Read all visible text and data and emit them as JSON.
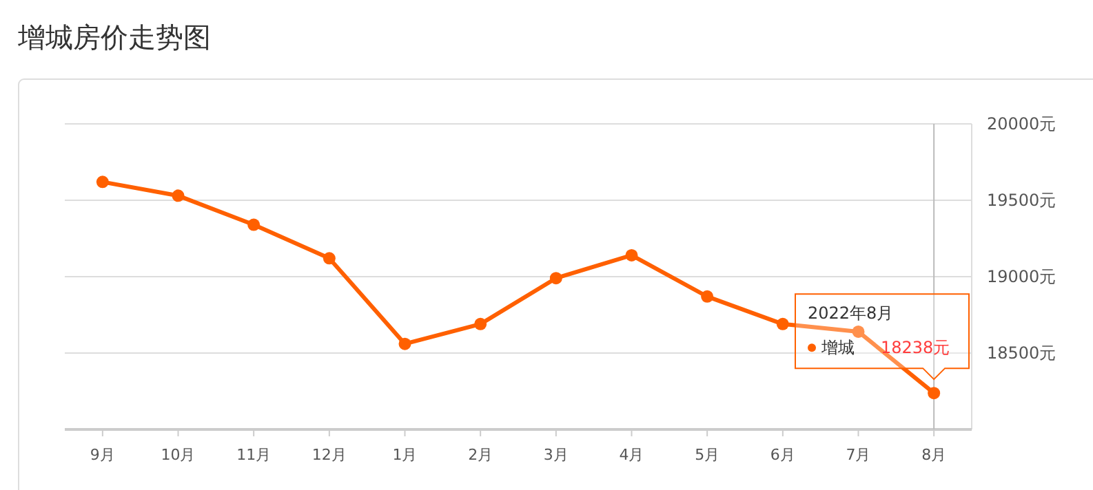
{
  "chart_data": {
    "type": "line",
    "title": "增城房价走势图",
    "categories": [
      "9月",
      "10月",
      "11月",
      "12月",
      "1月",
      "2月",
      "3月",
      "4月",
      "5月",
      "6月",
      "7月",
      "8月"
    ],
    "series": [
      {
        "name": "增城",
        "color": "#ff6000",
        "values": [
          19620,
          19530,
          19340,
          19120,
          18560,
          18690,
          18990,
          19140,
          18870,
          18690,
          18640,
          18238
        ],
        "value_labels": [
          null,
          null,
          null,
          null,
          null,
          null,
          null,
          null,
          null,
          null,
          null,
          "18238元"
        ]
      }
    ],
    "ylim": [
      18000,
      20000
    ],
    "yticks": [
      {
        "value": 18000,
        "label": null
      },
      {
        "value": 18500,
        "label": "18500元"
      },
      {
        "value": 19000,
        "label": "19000元"
      },
      {
        "value": 19500,
        "label": "19500元"
      },
      {
        "value": 20000,
        "label": "20000元"
      }
    ],
    "grid": "y",
    "marker": "circle",
    "line_style": "solid",
    "ref_lines": [
      {
        "axis": "x",
        "value": "8月",
        "color": "#bbbbbb"
      }
    ],
    "annotations": [
      "2022年8月"
    ]
  }
}
